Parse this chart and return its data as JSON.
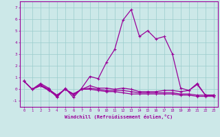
{
  "xlabel": "Windchill (Refroidissement éolien,°C)",
  "background_color": "#cce8e8",
  "grid_color": "#99cccc",
  "line_color": "#990099",
  "hours": [
    0,
    1,
    2,
    3,
    4,
    5,
    6,
    7,
    8,
    9,
    10,
    11,
    12,
    13,
    14,
    15,
    16,
    17,
    18,
    19,
    20,
    21,
    22,
    23
  ],
  "windchill": [
    0.7,
    0.0,
    0.5,
    0.1,
    -0.7,
    0.1,
    -0.7,
    0.1,
    1.1,
    0.9,
    2.3,
    3.4,
    5.9,
    6.8,
    4.5,
    5.0,
    4.3,
    4.5,
    3.0,
    0.1,
    -0.1,
    0.5,
    -0.5,
    -0.5
  ],
  "line2": [
    0.7,
    0.0,
    0.4,
    0.0,
    -0.5,
    0.0,
    -0.4,
    0.0,
    0.3,
    0.1,
    0.1,
    0.0,
    0.1,
    0.0,
    -0.2,
    -0.2,
    -0.2,
    -0.1,
    -0.1,
    -0.2,
    -0.1,
    0.4,
    -0.5,
    -0.5
  ],
  "line3": [
    0.7,
    0.0,
    0.3,
    0.0,
    -0.5,
    0.0,
    -0.4,
    0.0,
    0.1,
    0.0,
    -0.1,
    -0.1,
    -0.1,
    -0.2,
    -0.3,
    -0.3,
    -0.3,
    -0.3,
    -0.3,
    -0.4,
    -0.4,
    -0.5,
    -0.5,
    -0.5
  ],
  "line4": [
    0.7,
    0.0,
    0.3,
    -0.1,
    -0.6,
    0.0,
    -0.5,
    0.0,
    0.0,
    -0.1,
    -0.2,
    -0.2,
    -0.3,
    -0.4,
    -0.4,
    -0.4,
    -0.4,
    -0.4,
    -0.4,
    -0.5,
    -0.5,
    -0.6,
    -0.6,
    -0.6
  ],
  "ylim": [
    -1.5,
    7.5
  ],
  "yticks": [
    -1,
    0,
    1,
    2,
    3,
    4,
    5,
    6,
    7
  ],
  "xlim": [
    -0.5,
    23.5
  ]
}
